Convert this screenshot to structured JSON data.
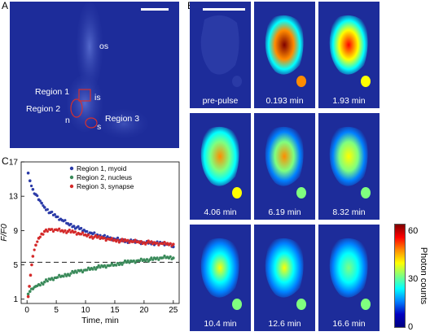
{
  "panels": {
    "a": "A",
    "b": "B",
    "c": "C"
  },
  "panel_a": {
    "labels": {
      "os": "os",
      "is": "is",
      "n": "n",
      "s": "s",
      "region1": "Region 1",
      "region2": "Region 2",
      "region3": "Region 3"
    }
  },
  "panel_b": {
    "tiles": [
      {
        "label": "pre-pulse",
        "intensity": 0.05
      },
      {
        "label": "0.193 min",
        "intensity": 1.0
      },
      {
        "label": "1.93 min",
        "intensity": 0.85
      },
      {
        "label": "4.06 min",
        "intensity": 0.8
      },
      {
        "label": "6.19 min",
        "intensity": 0.72
      },
      {
        "label": "8.32 min",
        "intensity": 0.68
      },
      {
        "label": "10.4 min",
        "intensity": 0.62
      },
      {
        "label": "12.6 min",
        "intensity": 0.58
      },
      {
        "label": "16.6 min",
        "intensity": 0.55
      }
    ]
  },
  "colorbar": {
    "label": "Photon counts",
    "ticks": [
      "60",
      "30",
      "0"
    ],
    "tick_values": [
      60,
      30,
      0
    ],
    "range": [
      0,
      65
    ],
    "colors": [
      "#7f0000",
      "#ff0000",
      "#ff8c00",
      "#ffff00",
      "#7fff7f",
      "#00ffff",
      "#0080ff",
      "#0000c0",
      "#00007f"
    ]
  },
  "chart_data": {
    "type": "scatter",
    "xlabel": "Time, min",
    "ylabel": "F/F0",
    "xlim": [
      -1,
      26
    ],
    "ylim": [
      0.5,
      17
    ],
    "xticks": [
      0,
      5,
      10,
      15,
      20,
      25
    ],
    "yticks": [
      1,
      5,
      9,
      13,
      17
    ],
    "baseline_y": 5.3,
    "legend_position": "top-right",
    "series": [
      {
        "name": "Region 1, myoid",
        "color": "#2b3ba8",
        "x": [
          0.2,
          0.5,
          1,
          1.5,
          2,
          2.5,
          3,
          4,
          5,
          6,
          7,
          8,
          9,
          10,
          11,
          12,
          13,
          14,
          15,
          16,
          17,
          18,
          19,
          20,
          21,
          22,
          23,
          24,
          25
        ],
        "y": [
          15.7,
          14.8,
          13.8,
          13.2,
          12.6,
          12.2,
          11.7,
          11.1,
          10.6,
          10.2,
          9.8,
          9.5,
          9.2,
          8.9,
          8.7,
          8.5,
          8.3,
          8.1,
          8.0,
          7.9,
          7.8,
          7.7,
          7.7,
          7.6,
          7.6,
          7.5,
          7.5,
          7.4,
          7.1
        ]
      },
      {
        "name": "Region 2, nucleus",
        "color": "#3a8a5a",
        "x": [
          0.2,
          0.5,
          1,
          1.5,
          2,
          3,
          4,
          5,
          6,
          7,
          8,
          9,
          10,
          11,
          12,
          13,
          14,
          15,
          16,
          17,
          18,
          19,
          20,
          21,
          22,
          23,
          24,
          25
        ],
        "y": [
          1.6,
          1.9,
          2.2,
          2.5,
          2.7,
          3.0,
          3.3,
          3.5,
          3.7,
          3.9,
          4.1,
          4.3,
          4.4,
          4.6,
          4.7,
          4.8,
          4.9,
          5.0,
          5.2,
          5.3,
          5.4,
          5.5,
          5.6,
          5.6,
          5.7,
          5.8,
          5.9,
          5.8
        ]
      },
      {
        "name": "Region 3, synapse",
        "color": "#d42a2a",
        "x": [
          0.2,
          0.4,
          0.6,
          0.8,
          1,
          1.5,
          2,
          2.5,
          3,
          4,
          5,
          6,
          7,
          8,
          9,
          10,
          11,
          12,
          13,
          14,
          15,
          16,
          17,
          18,
          19,
          20,
          21,
          22,
          23,
          24,
          25
        ],
        "y": [
          1.3,
          2.5,
          3.8,
          5.0,
          6.0,
          7.3,
          8.1,
          8.6,
          8.9,
          9.1,
          9.1,
          9.0,
          8.9,
          8.8,
          8.6,
          8.5,
          8.3,
          8.2,
          8.1,
          8.0,
          7.9,
          7.8,
          7.8,
          7.7,
          7.7,
          7.6,
          7.6,
          7.5,
          7.5,
          7.5,
          7.4
        ]
      }
    ]
  }
}
